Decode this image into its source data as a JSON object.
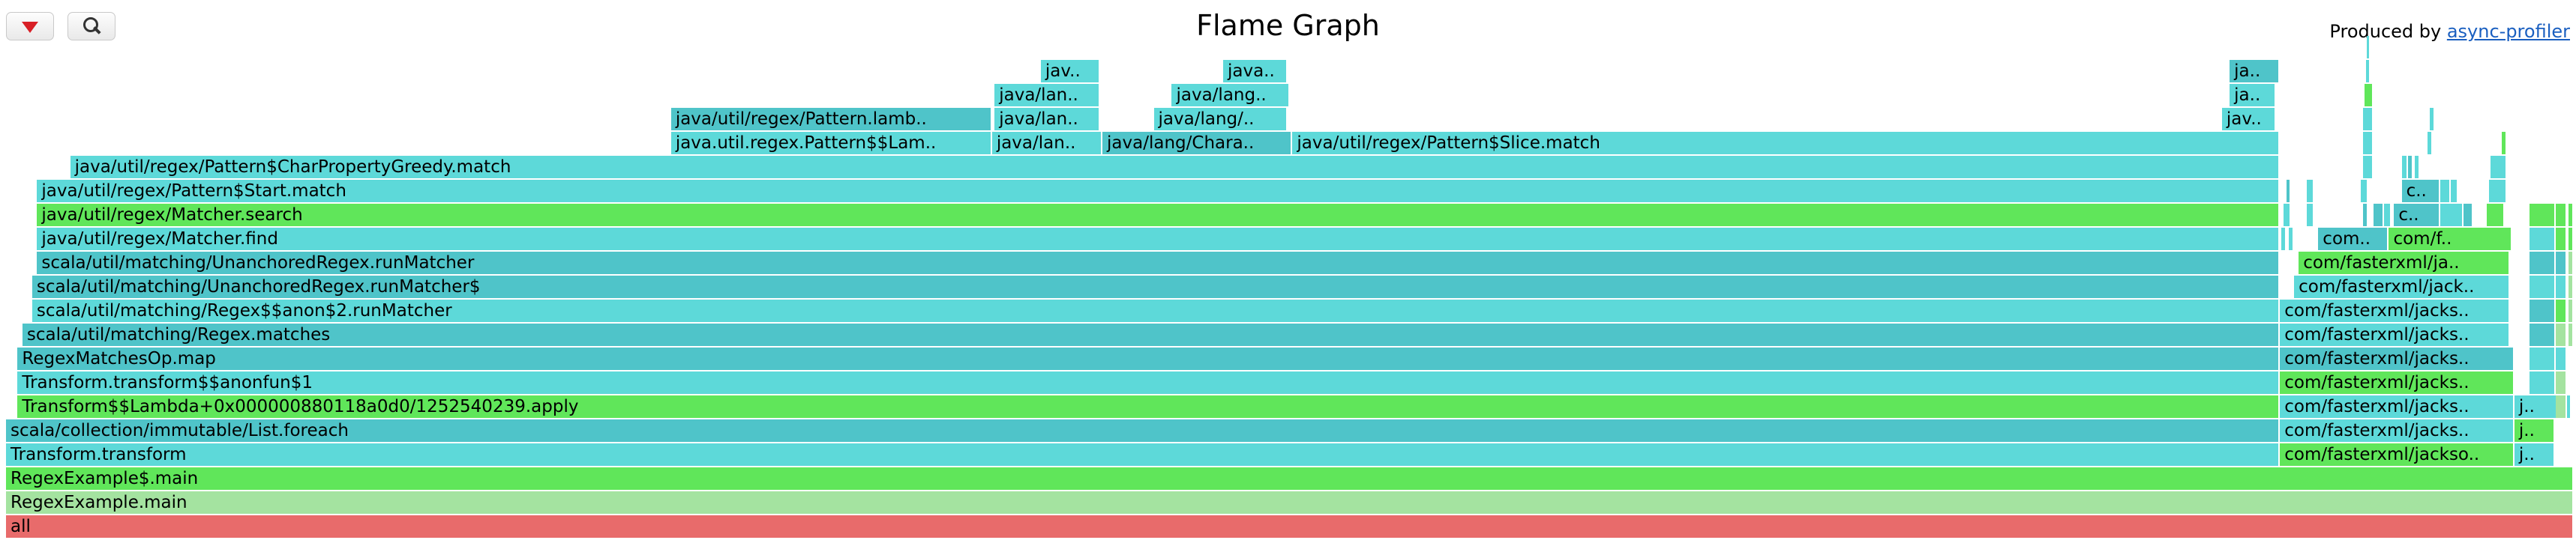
{
  "title": "Flame Graph",
  "produced_by": {
    "prefix": "Produced by ",
    "link_text": "async-profiler"
  },
  "toolbar": {
    "reverse_icon": "red-triangle-down-icon",
    "search_icon": "magnifier-icon"
  },
  "colors": {
    "java": "#5dd9d9",
    "java_dark": "#4fc4c9",
    "inlined": "#60e65a",
    "c1": "#a4e3a0",
    "root": "#e86b6b"
  },
  "frames": [
    {
      "label": "all",
      "row": 0,
      "x0": 0.0,
      "x1": 1.0,
      "color": "root"
    },
    {
      "label": "RegexExample.main",
      "row": 1,
      "x0": 0.0,
      "x1": 1.0,
      "color": "c1"
    },
    {
      "label": "RegexExample$.main",
      "row": 2,
      "x0": 0.0,
      "x1": 1.0,
      "color": "inlined"
    },
    {
      "label": "Transform.transform",
      "row": 3,
      "x0": 0.0,
      "x1": 0.8856,
      "color": "java"
    },
    {
      "label": "com/fasterxml/jackso..",
      "row": 3,
      "x0": 0.8856,
      "x1": 0.9769,
      "color": "inlined"
    },
    {
      "label": "j..",
      "row": 3,
      "x0": 0.9769,
      "x1": 0.9926,
      "color": "java"
    },
    {
      "label": "scala/collection/immutable/List.foreach",
      "row": 4,
      "x0": 0.0,
      "x1": 0.8856,
      "color": "java_dark"
    },
    {
      "label": "com/fasterxml/jacks..",
      "row": 4,
      "x0": 0.8856,
      "x1": 0.9769,
      "color": "java"
    },
    {
      "label": "j..",
      "row": 4,
      "x0": 0.9769,
      "x1": 0.9926,
      "color": "inlined"
    },
    {
      "label": "Transform$$Lambda+0x000000880118a0d0/1252540239.apply",
      "row": 5,
      "x0": 0.0045,
      "x1": 0.8856,
      "color": "inlined"
    },
    {
      "label": "com/fasterxml/jacks..",
      "row": 5,
      "x0": 0.8856,
      "x1": 0.9769,
      "color": "java"
    },
    {
      "label": "j..",
      "row": 5,
      "x0": 0.9769,
      "x1": 0.9992,
      "color": "java"
    },
    {
      "label": "Transform.transform$$anonfun$1",
      "row": 6,
      "x0": 0.0045,
      "x1": 0.8856,
      "color": "java"
    },
    {
      "label": "com/fasterxml/jacks..",
      "row": 6,
      "x0": 0.8856,
      "x1": 0.9769,
      "color": "inlined"
    },
    {
      "label": "",
      "row": 6,
      "x0": 0.9828,
      "x1": 0.993,
      "color": "java"
    },
    {
      "label": "RegexMatchesOp.map",
      "row": 7,
      "x0": 0.0045,
      "x1": 0.8856,
      "color": "java_dark"
    },
    {
      "label": "com/fasterxml/jacks..",
      "row": 7,
      "x0": 0.8856,
      "x1": 0.9769,
      "color": "java_dark"
    },
    {
      "label": "",
      "row": 7,
      "x0": 0.9828,
      "x1": 0.993,
      "color": "java"
    },
    {
      "label": "scala/util/matching/Regex.matches",
      "row": 8,
      "x0": 0.0064,
      "x1": 0.8856,
      "color": "java_dark"
    },
    {
      "label": "com/fasterxml/jacks..",
      "row": 8,
      "x0": 0.8856,
      "x1": 0.9753,
      "color": "java"
    },
    {
      "label": "",
      "row": 8,
      "x0": 0.9828,
      "x1": 0.993,
      "color": "java_dark"
    },
    {
      "label": "scala/util/matching/Regex$$anon$2.runMatcher",
      "row": 9,
      "x0": 0.0102,
      "x1": 0.8856,
      "color": "java"
    },
    {
      "label": "com/fasterxml/jacks..",
      "row": 9,
      "x0": 0.8856,
      "x1": 0.9753,
      "color": "java"
    },
    {
      "label": "",
      "row": 9,
      "x0": 0.9828,
      "x1": 0.993,
      "color": "java_dark"
    },
    {
      "label": "scala/util/matching/UnanchoredRegex.runMatcher$",
      "row": 10,
      "x0": 0.0102,
      "x1": 0.8856,
      "color": "java_dark"
    },
    {
      "label": "com/fasterxml/jack..",
      "row": 10,
      "x0": 0.8911,
      "x1": 0.9753,
      "color": "java"
    },
    {
      "label": "",
      "row": 10,
      "x0": 0.9828,
      "x1": 0.993,
      "color": "java"
    },
    {
      "label": "scala/util/matching/UnanchoredRegex.runMatcher",
      "row": 11,
      "x0": 0.0121,
      "x1": 0.8856,
      "color": "java_dark"
    },
    {
      "label": "com/fasterxml/ja..",
      "row": 11,
      "x0": 0.8929,
      "x1": 0.9753,
      "color": "inlined"
    },
    {
      "label": "",
      "row": 11,
      "x0": 0.9828,
      "x1": 0.993,
      "color": "java_dark"
    },
    {
      "label": "java/util/regex/Matcher.find",
      "row": 12,
      "x0": 0.0121,
      "x1": 0.8856,
      "color": "java"
    },
    {
      "label": "com..",
      "row": 12,
      "x0": 0.9005,
      "x1": 0.928,
      "color": "java_dark"
    },
    {
      "label": "com/f..",
      "row": 12,
      "x0": 0.928,
      "x1": 0.976,
      "color": "inlined"
    },
    {
      "label": "",
      "row": 12,
      "x0": 0.9828,
      "x1": 0.993,
      "color": "java"
    },
    {
      "label": "java/util/regex/Matcher.search",
      "row": 13,
      "x0": 0.0121,
      "x1": 0.8856,
      "color": "inlined"
    },
    {
      "label": "c..",
      "row": 13,
      "x0": 0.93,
      "x1": 0.948,
      "color": "java_dark"
    },
    {
      "label": "",
      "row": 13,
      "x0": 0.9828,
      "x1": 0.993,
      "color": "inlined"
    },
    {
      "label": "java/util/regex/Pattern$Start.match",
      "row": 14,
      "x0": 0.0121,
      "x1": 0.8856,
      "color": "java"
    },
    {
      "label": "c..",
      "row": 14,
      "x0": 0.933,
      "x1": 0.948,
      "color": "java_dark"
    },
    {
      "label": "java/util/regex/Pattern$CharPropertyGreedy.match",
      "row": 15,
      "x0": 0.025,
      "x1": 0.8856,
      "color": "java"
    },
    {
      "label": "java.util.regex.Pattern$$Lam..",
      "row": 16,
      "x0": 0.259,
      "x1": 0.384,
      "color": "java"
    },
    {
      "label": "java/lan..",
      "row": 16,
      "x0": 0.384,
      "x1": 0.427,
      "color": "java"
    },
    {
      "label": "java/lang/Chara..",
      "row": 16,
      "x0": 0.427,
      "x1": 0.501,
      "color": "java_dark"
    },
    {
      "label": "java/util/regex/Pattern$Slice.match",
      "row": 16,
      "x0": 0.501,
      "x1": 0.8856,
      "color": "java"
    },
    {
      "label": "java/util/regex/Pattern.lamb..",
      "row": 17,
      "x0": 0.259,
      "x1": 0.384,
      "color": "java_dark"
    },
    {
      "label": "java/lan..",
      "row": 17,
      "x0": 0.385,
      "x1": 0.426,
      "color": "java"
    },
    {
      "label": "java/lang/..",
      "row": 17,
      "x0": 0.447,
      "x1": 0.499,
      "color": "java"
    },
    {
      "label": "jav..",
      "row": 17,
      "x0": 0.863,
      "x1": 0.884,
      "color": "java"
    },
    {
      "label": "java/lan..",
      "row": 18,
      "x0": 0.385,
      "x1": 0.426,
      "color": "java"
    },
    {
      "label": "java/lang..",
      "row": 18,
      "x0": 0.454,
      "x1": 0.5,
      "color": "java"
    },
    {
      "label": "ja..",
      "row": 18,
      "x0": 0.866,
      "x1": 0.884,
      "color": "java"
    },
    {
      "label": "jav..",
      "row": 19,
      "x0": 0.403,
      "x1": 0.426,
      "color": "java"
    },
    {
      "label": "java..",
      "row": 19,
      "x0": 0.474,
      "x1": 0.499,
      "color": "java"
    },
    {
      "label": "ja..",
      "row": 19,
      "x0": 0.866,
      "x1": 0.8856,
      "color": "java_dark"
    },
    {
      "label": "",
      "row": 5,
      "x0": 0.993,
      "x1": 0.9975,
      "color": "c1"
    },
    {
      "label": "",
      "row": 6,
      "x0": 0.993,
      "x1": 0.9975,
      "color": "c1"
    },
    {
      "label": "",
      "row": 7,
      "x0": 0.993,
      "x1": 0.9975,
      "color": "java"
    },
    {
      "label": "",
      "row": 8,
      "x0": 0.993,
      "x1": 0.9975,
      "color": "c1"
    },
    {
      "label": "",
      "row": 9,
      "x0": 0.993,
      "x1": 0.9975,
      "color": "inlined"
    },
    {
      "label": "",
      "row": 10,
      "x0": 0.993,
      "x1": 0.9975,
      "color": "java"
    },
    {
      "label": "",
      "row": 11,
      "x0": 0.993,
      "x1": 0.9975,
      "color": "java_dark"
    },
    {
      "label": "",
      "row": 12,
      "x0": 0.993,
      "x1": 0.9975,
      "color": "inlined"
    },
    {
      "label": "",
      "row": 13,
      "x0": 0.993,
      "x1": 0.9975,
      "color": "inlined"
    },
    {
      "label": "",
      "row": 12,
      "x0": 0.998,
      "x1": 1.0,
      "color": "inlined"
    },
    {
      "label": "",
      "row": 13,
      "x0": 0.998,
      "x1": 1.0,
      "color": "inlined"
    },
    {
      "label": "",
      "row": 8,
      "x0": 0.998,
      "x1": 1.0,
      "color": "c1"
    },
    {
      "label": "",
      "row": 9,
      "x0": 0.998,
      "x1": 1.0,
      "color": "c1"
    },
    {
      "label": "",
      "row": 10,
      "x0": 0.998,
      "x1": 1.0,
      "color": "c1"
    },
    {
      "label": "",
      "row": 11,
      "x0": 0.998,
      "x1": 1.0,
      "color": "c1"
    },
    {
      "label": "",
      "row": 12,
      "x0": 0.886,
      "x1": 0.888,
      "color": "java"
    },
    {
      "label": "",
      "row": 12,
      "x0": 0.889,
      "x1": 0.891,
      "color": "java"
    },
    {
      "label": "",
      "row": 13,
      "x0": 0.887,
      "x1": 0.89,
      "color": "java"
    },
    {
      "label": "",
      "row": 14,
      "x0": 0.888,
      "x1": 0.89,
      "color": "java_dark"
    },
    {
      "label": "",
      "row": 13,
      "x0": 0.896,
      "x1": 0.899,
      "color": "java"
    },
    {
      "label": "",
      "row": 14,
      "x0": 0.896,
      "x1": 0.899,
      "color": "java"
    },
    {
      "label": "",
      "row": 13,
      "x0": 0.918,
      "x1": 0.92,
      "color": "java_dark"
    },
    {
      "label": "",
      "row": 14,
      "x0": 0.917,
      "x1": 0.92,
      "color": "java"
    },
    {
      "label": "",
      "row": 15,
      "x0": 0.918,
      "x1": 0.922,
      "color": "java"
    },
    {
      "label": "",
      "row": 16,
      "x0": 0.918,
      "x1": 0.922,
      "color": "java"
    },
    {
      "label": "",
      "row": 17,
      "x0": 0.918,
      "x1": 0.922,
      "color": "java"
    },
    {
      "label": "",
      "row": 18,
      "x0": 0.9185,
      "x1": 0.922,
      "color": "inlined"
    },
    {
      "label": "",
      "row": 19,
      "x0": 0.919,
      "x1": 0.921,
      "color": "java"
    },
    {
      "label": "",
      "row": 20,
      "x0": 0.9195,
      "x1": 0.921,
      "color": "java"
    },
    {
      "label": "",
      "row": 13,
      "x0": 0.922,
      "x1": 0.926,
      "color": "java_dark"
    },
    {
      "label": "",
      "row": 13,
      "x0": 0.926,
      "x1": 0.929,
      "color": "java"
    },
    {
      "label": "",
      "row": 15,
      "x0": 0.933,
      "x1": 0.9355,
      "color": "java"
    },
    {
      "label": "",
      "row": 15,
      "x0": 0.9355,
      "x1": 0.9375,
      "color": "java_dark"
    },
    {
      "label": "",
      "row": 15,
      "x0": 0.938,
      "x1": 0.94,
      "color": "java"
    },
    {
      "label": "",
      "row": 16,
      "x0": 0.943,
      "x1": 0.945,
      "color": "java"
    },
    {
      "label": "",
      "row": 17,
      "x0": 0.944,
      "x1": 0.946,
      "color": "java"
    },
    {
      "label": "",
      "row": 14,
      "x0": 0.948,
      "x1": 0.952,
      "color": "java"
    },
    {
      "label": "",
      "row": 13,
      "x0": 0.948,
      "x1": 0.957,
      "color": "java"
    },
    {
      "label": "",
      "row": 13,
      "x0": 0.957,
      "x1": 0.961,
      "color": "java_dark"
    },
    {
      "label": "",
      "row": 14,
      "x0": 0.952,
      "x1": 0.955,
      "color": "java"
    },
    {
      "label": "",
      "row": 13,
      "x0": 0.966,
      "x1": 0.973,
      "color": "inlined"
    },
    {
      "label": "",
      "row": 14,
      "x0": 0.967,
      "x1": 0.974,
      "color": "java"
    },
    {
      "label": "",
      "row": 15,
      "x0": 0.9675,
      "x1": 0.974,
      "color": "java"
    },
    {
      "label": "",
      "row": 16,
      "x0": 0.972,
      "x1": 0.974,
      "color": "inlined"
    }
  ]
}
